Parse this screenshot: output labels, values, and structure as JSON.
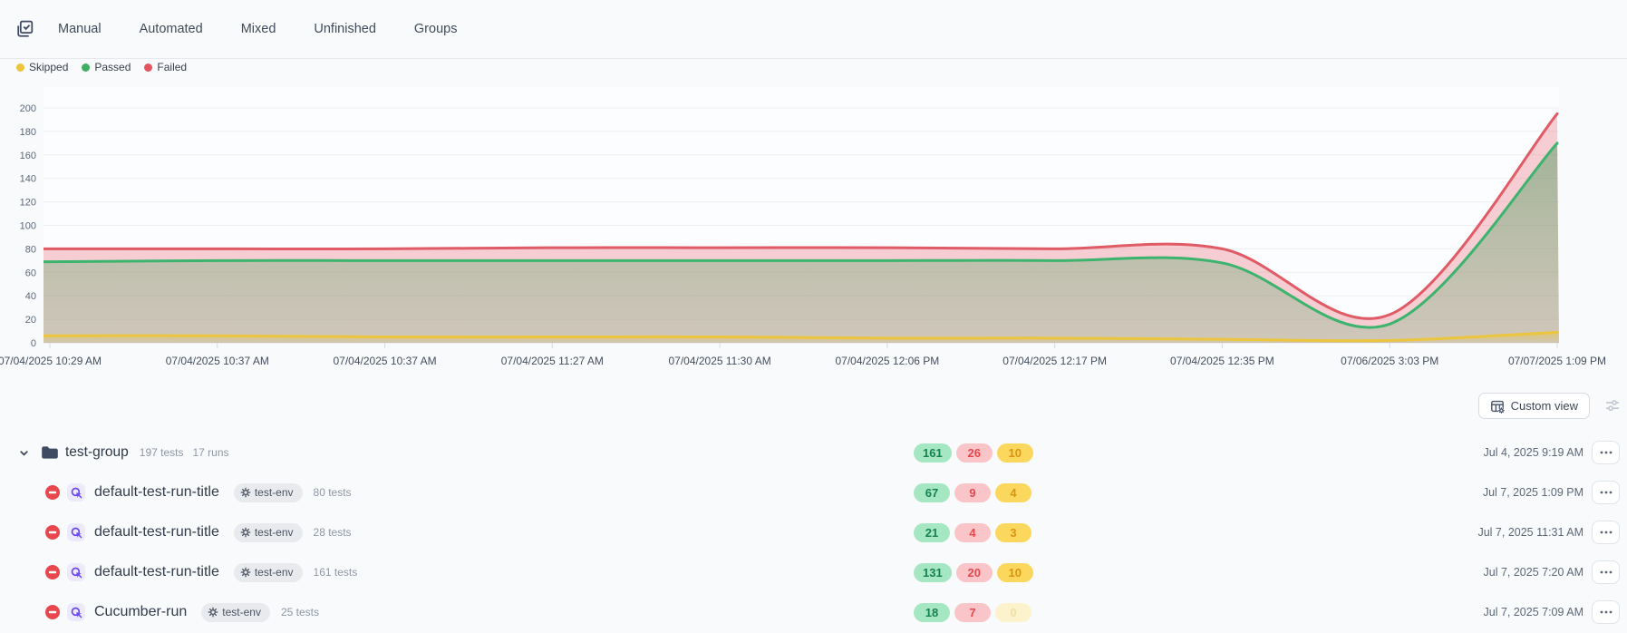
{
  "topbar": {
    "tabs": [
      {
        "label": "Manual"
      },
      {
        "label": "Automated"
      },
      {
        "label": "Mixed"
      },
      {
        "label": "Unfinished"
      },
      {
        "label": "Groups"
      }
    ]
  },
  "legend": {
    "items": [
      {
        "label": "Skipped",
        "color": "#eec63d"
      },
      {
        "label": "Passed",
        "color": "#3fae62"
      },
      {
        "label": "Failed",
        "color": "#e5545e"
      }
    ]
  },
  "chart_data": {
    "type": "area",
    "title": "",
    "xlabel": "",
    "ylabel": "",
    "x": [
      "07/04/2025 10:29 AM",
      "07/04/2025 10:37 AM",
      "07/04/2025 10:37 AM",
      "07/04/2025 11:27 AM",
      "07/04/2025 11:30 AM",
      "07/04/2025 12:06 PM",
      "07/04/2025 12:17 PM",
      "07/04/2025 12:35 PM",
      "07/06/2025 3:03 PM",
      "07/07/2025 1:09 PM"
    ],
    "series": [
      {
        "name": "Failed",
        "line_color": "#e05b65",
        "fill": "#e76a73",
        "fill_opacity": 0.32,
        "values": [
          80,
          80,
          80,
          81,
          81,
          81,
          80,
          80,
          24,
          195
        ]
      },
      {
        "name": "Passed",
        "line_color": "#3cb46d",
        "fill_top": "#4f9a5f",
        "fill_top_opacity": 0.5,
        "fill_bottom": "#86b98b",
        "fill_bottom_opacity": 0.34,
        "values": [
          69,
          70,
          70,
          70,
          70,
          70,
          70,
          68,
          16,
          170
        ]
      },
      {
        "name": "Skipped",
        "line_color": "#ecc53e",
        "fill_top": "#ecc53e",
        "fill_top_opacity": 0.55,
        "fill_bottom": "#ecc53e",
        "fill_bottom_opacity": 0.05,
        "values": [
          6,
          6,
          5,
          5,
          5,
          4,
          4,
          3,
          2,
          9
        ]
      }
    ],
    "ylim": [
      0,
      200
    ],
    "yticks": [
      0,
      20,
      40,
      60,
      80,
      100,
      120,
      140,
      160,
      180,
      200
    ],
    "grid": true,
    "legend_position": "top-left",
    "stacking": "lines are cumulative (skipped, +passed, +failed) per run"
  },
  "toolbar": {
    "custom_view_label": "Custom view"
  },
  "list": {
    "group": {
      "name": "test-group",
      "tests": "197 tests",
      "runs": "17 runs",
      "passed": "161",
      "failed": "26",
      "skipped": "10",
      "date": "Jul 4, 2025 9:19 AM"
    },
    "runs": [
      {
        "title": "default-test-run-title",
        "env": "test-env",
        "tests": "80 tests",
        "passed": "67",
        "failed": "9",
        "skipped": "4",
        "skipped_zero": false,
        "date": "Jul 7, 2025 1:09 PM"
      },
      {
        "title": "default-test-run-title",
        "env": "test-env",
        "tests": "28 tests",
        "passed": "21",
        "failed": "4",
        "skipped": "3",
        "skipped_zero": false,
        "date": "Jul 7, 2025 11:31 AM"
      },
      {
        "title": "default-test-run-title",
        "env": "test-env",
        "tests": "161 tests",
        "passed": "131",
        "failed": "20",
        "skipped": "10",
        "skipped_zero": false,
        "date": "Jul 7, 2025 7:20 AM"
      },
      {
        "title": "Cucumber-run",
        "env": "test-env",
        "tests": "25 tests",
        "passed": "18",
        "failed": "7",
        "skipped": "0",
        "skipped_zero": true,
        "date": "Jul 7, 2025 7:09 AM"
      }
    ]
  },
  "colors": {
    "passed_badge_bg": "#a6e7c3",
    "passed_badge_text": "#17814e",
    "failed_badge_bg": "#f9c5c8",
    "failed_badge_text": "#e5484d",
    "skipped_badge_bg": "#fbd75e",
    "skipped_badge_text": "#d99410",
    "skipped_zero_badge_bg": "#fcf3cd",
    "skipped_zero_badge_text": "#eddfa6",
    "env_badge_bg": "#e8eaee",
    "env_badge_text": "#4a5362",
    "stopped_icon": "#e8474e",
    "automation_icon": "#6a48f2",
    "automation_icon_bg": "#edeafc",
    "folder_icon": "#3f4a63",
    "page_bg": "#f9fafb"
  }
}
